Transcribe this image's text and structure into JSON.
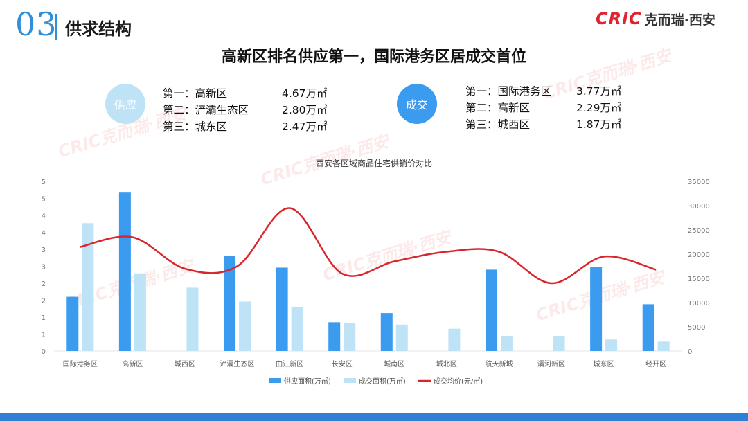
{
  "header": {
    "section_number": "03",
    "section_title": "供求结构",
    "logo_mark": "CRIC",
    "logo_text": "克而瑞·西安"
  },
  "headline": "高新区排名供应第一，国际港务区居成交首位",
  "watermark_text": "CRIC克而瑞·西安",
  "supply": {
    "badge": "供应",
    "ranks": [
      {
        "rank": "第一：",
        "district": "高新区",
        "area": "4.67万㎡"
      },
      {
        "rank": "第二：",
        "district": "浐灞生态区",
        "area": "2.80万㎡"
      },
      {
        "rank": "第三：",
        "district": "城东区",
        "area": "2.47万㎡"
      }
    ]
  },
  "deal": {
    "badge": "成交",
    "ranks": [
      {
        "rank": "第一：",
        "district": "国际港务区",
        "area": "3.77万㎡"
      },
      {
        "rank": "第二：",
        "district": "高新区",
        "area": "2.29万㎡"
      },
      {
        "rank": "第三：",
        "district": "城西区",
        "area": "1.87万㎡"
      }
    ]
  },
  "chart_data": {
    "type": "bar",
    "title": "西安各区域商品住宅供销价对比",
    "categories": [
      "国际港务区",
      "高新区",
      "城西区",
      "浐灞生态区",
      "曲江新区",
      "长安区",
      "城南区",
      "城北区",
      "航天新城",
      "灞河新区",
      "城东区",
      "经开区"
    ],
    "left_axis_ticks": [
      "0",
      "1",
      "1",
      "2",
      "2",
      "3",
      "3",
      "4",
      "4",
      "5",
      "5"
    ],
    "right_axis_ticks": [
      "0",
      "5000",
      "10000",
      "15000",
      "20000",
      "25000",
      "30000",
      "35000"
    ],
    "ylim_left": [
      0,
      5
    ],
    "ylim_right": [
      0,
      35000
    ],
    "series": [
      {
        "name": "供应面积(万㎡)",
        "type": "bar",
        "axis": "left",
        "color": "#3a9bef",
        "values": [
          1.6,
          4.67,
          0,
          2.8,
          2.46,
          0.85,
          1.12,
          0,
          2.4,
          0,
          2.47,
          1.38
        ]
      },
      {
        "name": "成交面积(万㎡)",
        "type": "bar",
        "axis": "left",
        "color": "#bfe3f6",
        "values": [
          3.77,
          2.29,
          1.87,
          1.46,
          1.3,
          0.82,
          0.78,
          0.66,
          0.45,
          0.45,
          0.34,
          0.28
        ]
      },
      {
        "name": "成交均价(元/㎡)",
        "type": "line",
        "axis": "right",
        "color": "#d9262c",
        "values": [
          21500,
          23500,
          17000,
          17500,
          29500,
          16000,
          18500,
          20500,
          20500,
          14000,
          19500,
          16800
        ]
      }
    ]
  }
}
